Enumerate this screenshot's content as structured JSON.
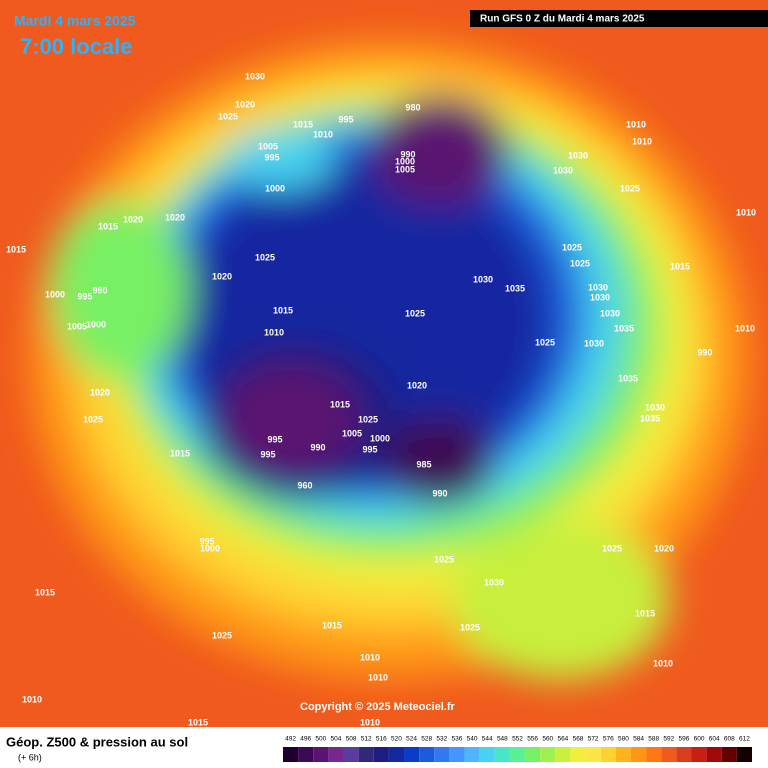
{
  "header": {
    "date": "Mardi 4 mars 2025",
    "time": "7:00 locale",
    "run": "Run GFS 0 Z du Mardi 4 mars 2025"
  },
  "map": {
    "isobar_labels": [
      "1030",
      "1020",
      "1025",
      "1015",
      "1010",
      "995",
      "980",
      "1005",
      "995",
      "1000",
      "990",
      "1000",
      "1005",
      "1010",
      "1010",
      "1030",
      "1030",
      "1025",
      "1010",
      "1015",
      "1015",
      "1020",
      "1020",
      "1025",
      "1020",
      "1025",
      "1025",
      "1015",
      "1030",
      "1035",
      "1030",
      "1030",
      "1030",
      "1035",
      "1030",
      "1025",
      "1025",
      "1015",
      "1000",
      "995",
      "990",
      "1005",
      "1000",
      "1010",
      "1020",
      "1020",
      "1025",
      "1035",
      "1030",
      "1035",
      "990",
      "1010",
      "1015",
      "1025",
      "1005",
      "1000",
      "995",
      "995",
      "995",
      "990",
      "960",
      "985",
      "990",
      "1015",
      "995",
      "1000",
      "1025",
      "1030",
      "1025",
      "1020",
      "1015",
      "1025",
      "1015",
      "1015",
      "1025",
      "1010",
      "1010",
      "1010",
      "1010",
      "1015",
      "1010"
    ],
    "copyright": "Copyright © 2025 Meteociel.fr"
  },
  "footer": {
    "title": "Géop. Z500 & pression au sol",
    "step": "(+ 6h)"
  },
  "scale": {
    "values": [
      492,
      496,
      500,
      504,
      508,
      512,
      516,
      520,
      524,
      528,
      532,
      536,
      540,
      544,
      548,
      552,
      556,
      560,
      564,
      568,
      572,
      576,
      580,
      584,
      588,
      592,
      596,
      600,
      604,
      608,
      612
    ],
    "colors": [
      "#1e0030",
      "#3c0a55",
      "#5a1470",
      "#78288c",
      "#5a3c9e",
      "#322878",
      "#1e1e82",
      "#1428a0",
      "#0a3cc8",
      "#1e5adc",
      "#3278f0",
      "#4696ff",
      "#50b4ff",
      "#46d2f0",
      "#46e6c8",
      "#5af096",
      "#78f064",
      "#a0f050",
      "#c8f03c",
      "#f0f03c",
      "#fae646",
      "#ffd232",
      "#ffb41e",
      "#ff9614",
      "#ff7814",
      "#f05a1e",
      "#dc3c1e",
      "#c81e14",
      "#a00a0a",
      "#640000",
      "#140000"
    ]
  }
}
